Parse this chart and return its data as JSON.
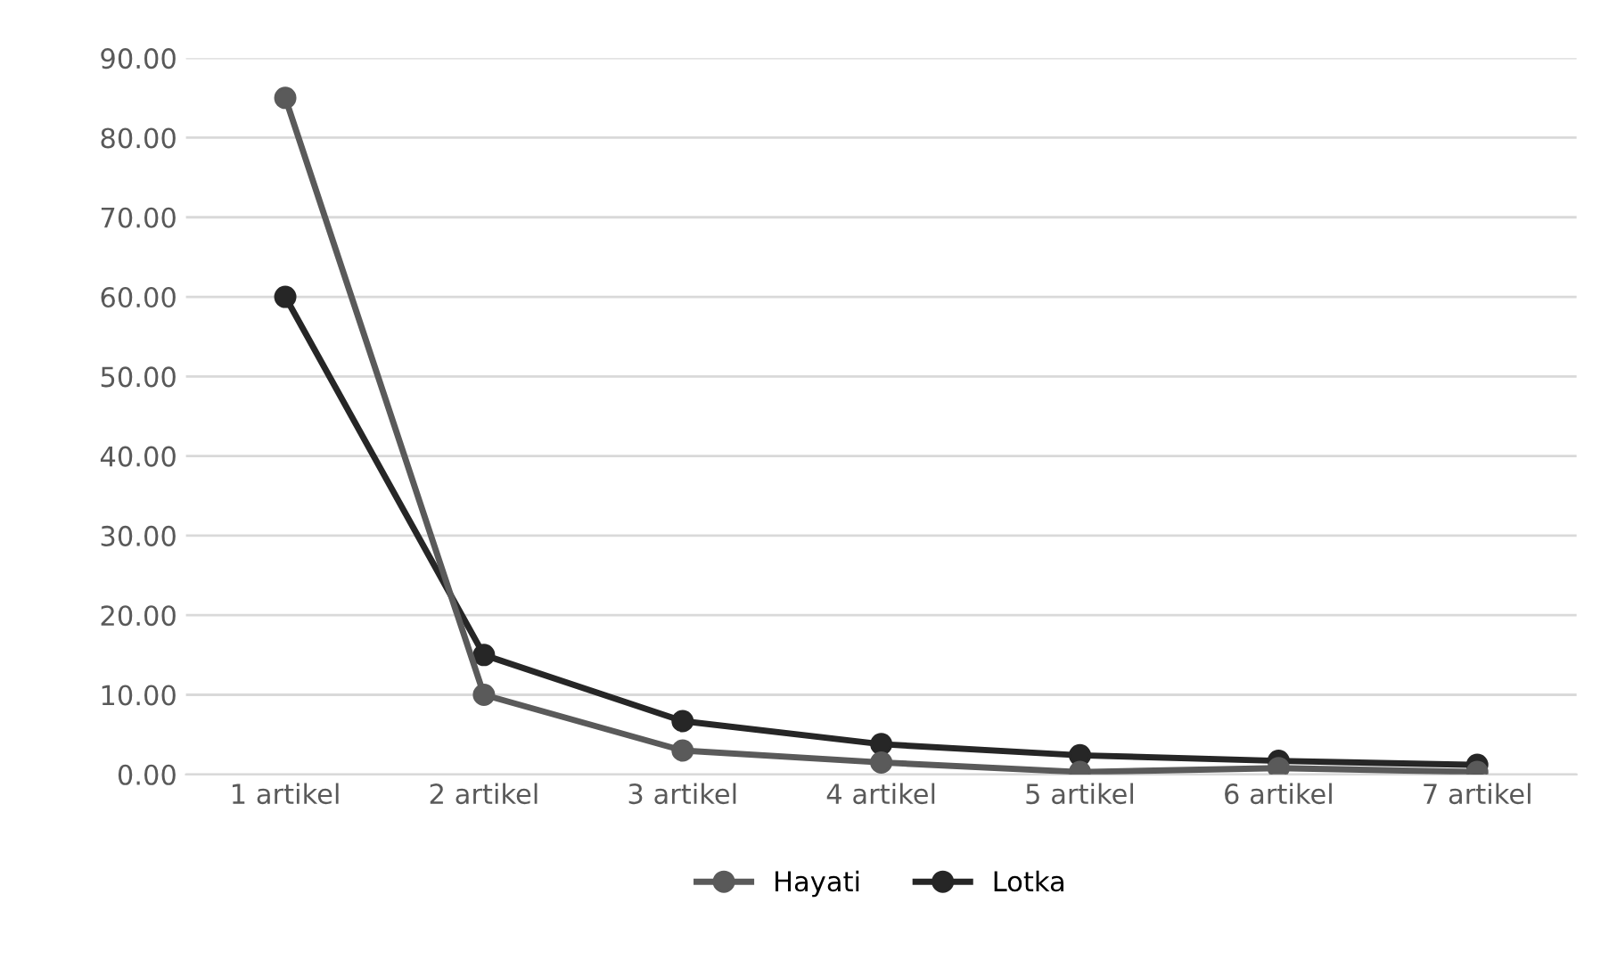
{
  "chart_data": {
    "type": "line",
    "categories": [
      "1 artikel",
      "2 artikel",
      "3 artikel",
      "4 artikel",
      "5 artikel",
      "6 artikel",
      "7 artikel"
    ],
    "series": [
      {
        "name": "Hayati",
        "color": "#5a5a5a",
        "values": [
          85,
          10,
          3,
          1.5,
          0.3,
          0.8,
          0.3
        ]
      },
      {
        "name": "Lotka",
        "color": "#262626",
        "values": [
          60,
          15,
          6.7,
          3.8,
          2.4,
          1.7,
          1.2
        ]
      }
    ],
    "ylim": [
      0,
      90
    ],
    "yticks": [
      {
        "value": 0,
        "label": "0.00"
      },
      {
        "value": 10,
        "label": "10.00"
      },
      {
        "value": 20,
        "label": "20.00"
      },
      {
        "value": 30,
        "label": "30.00"
      },
      {
        "value": 40,
        "label": "40.00"
      },
      {
        "value": 50,
        "label": "50.00"
      },
      {
        "value": 60,
        "label": "60.00"
      },
      {
        "value": 70,
        "label": "70.00"
      },
      {
        "value": 80,
        "label": "80.00"
      },
      {
        "value": 90,
        "label": "90.00"
      }
    ],
    "grid": "y",
    "legend": "bottom",
    "marker": "circle",
    "line_style": "solid"
  }
}
